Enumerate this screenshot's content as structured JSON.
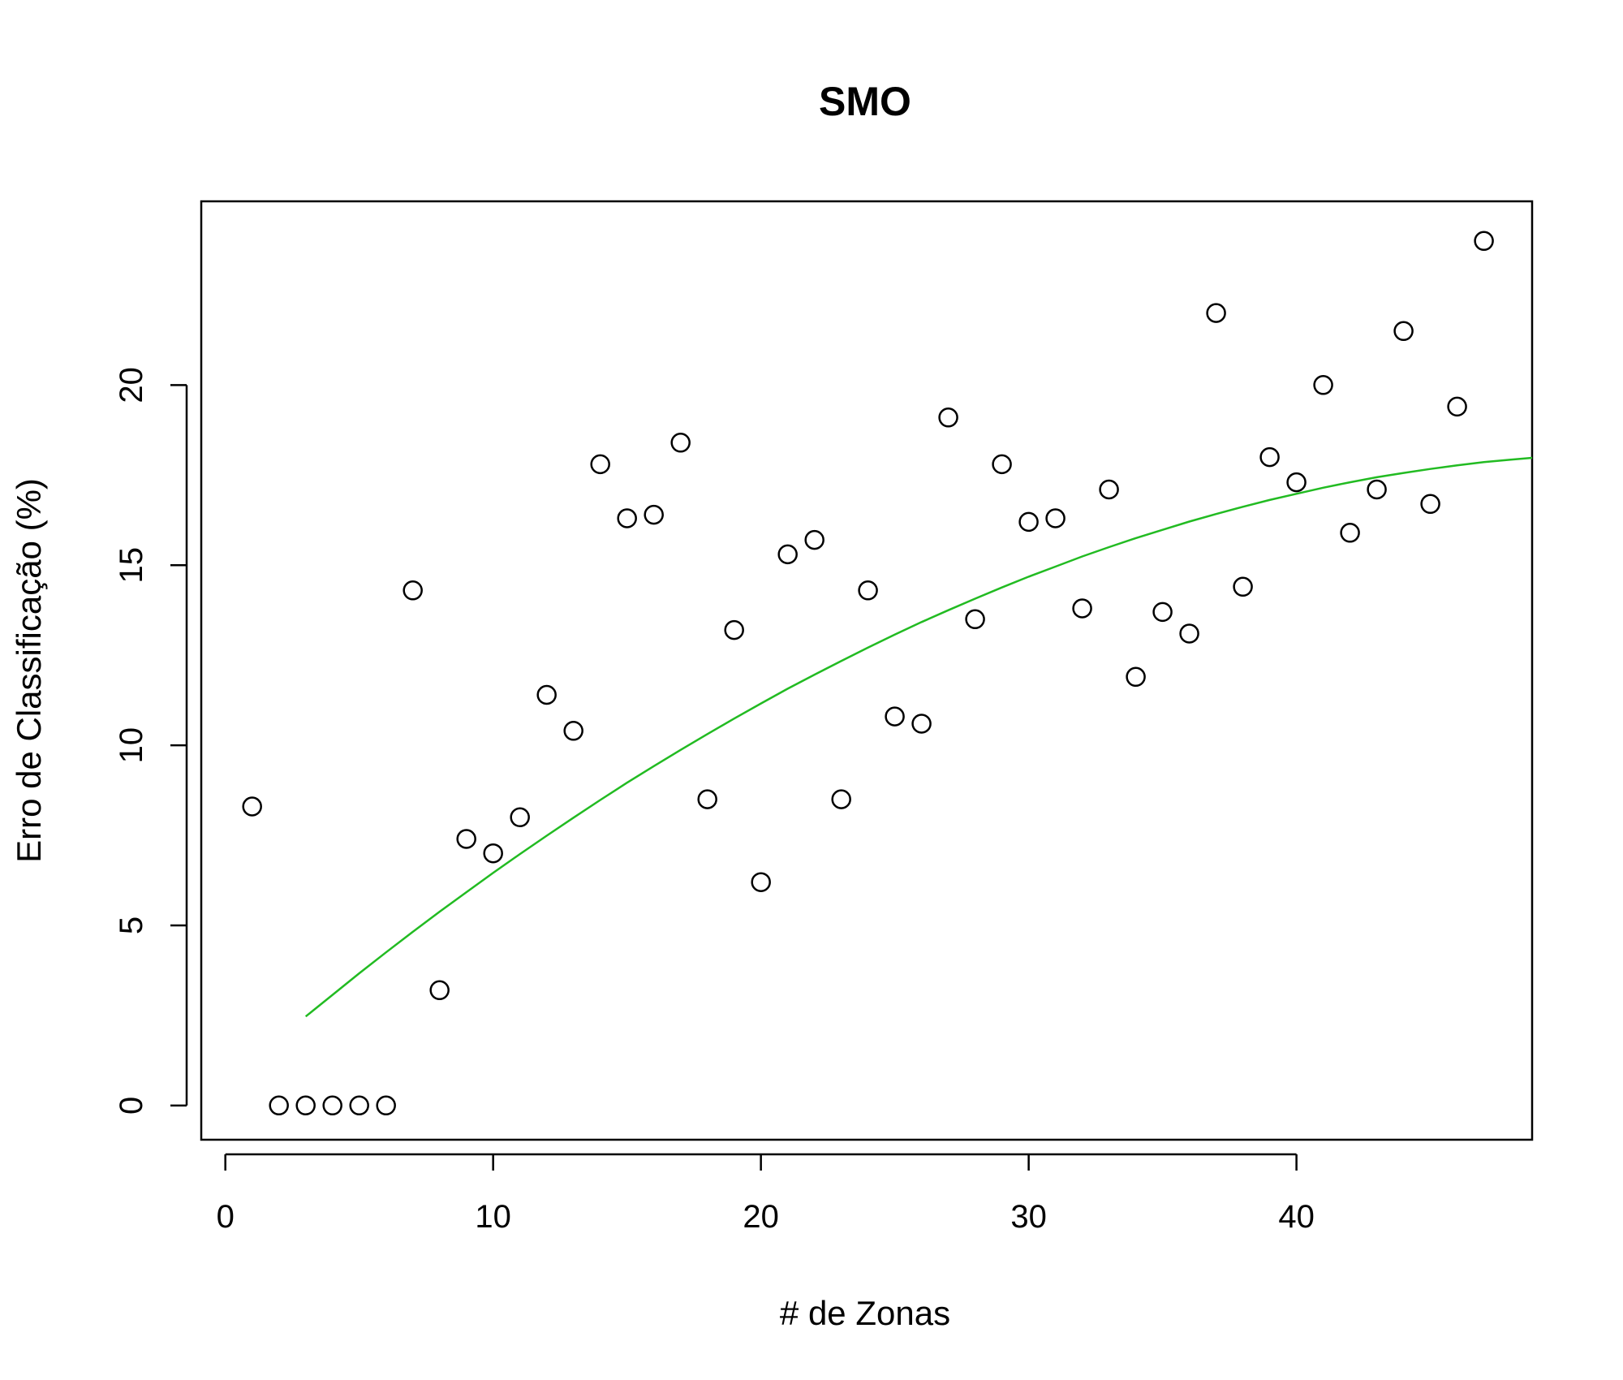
{
  "chart_data": {
    "type": "scatter",
    "title": "SMO",
    "xlabel": "# de Zonas",
    "ylabel": "Erro de Classificação (%)",
    "xlim": [
      -0.9,
      48.8
    ],
    "ylim": [
      -0.95,
      25.1
    ],
    "x_ticks": [
      0,
      10,
      20,
      30,
      40
    ],
    "y_ticks": [
      0,
      5,
      10,
      15,
      20
    ],
    "grid": false,
    "legend": "none",
    "point_color": "#000000",
    "trend_color": "#22bb22",
    "series": [
      {
        "x": [
          1,
          2,
          3,
          4,
          5,
          6,
          7,
          8,
          9,
          10,
          11,
          12,
          13,
          14,
          15,
          16,
          17,
          18,
          19,
          20,
          21,
          22,
          23,
          24,
          25,
          26,
          27,
          28,
          29,
          30,
          31,
          32,
          33,
          34,
          35,
          36,
          37,
          38,
          39,
          40,
          41,
          42,
          43,
          44,
          45,
          46,
          47
        ],
        "y": [
          8.3,
          0,
          0,
          0,
          0,
          0,
          14.3,
          3.2,
          7.4,
          7.0,
          8.0,
          11.4,
          10.4,
          17.8,
          16.3,
          16.4,
          18.4,
          8.5,
          13.2,
          6.2,
          15.3,
          15.7,
          8.5,
          14.3,
          10.8,
          10.6,
          19.1,
          13.5,
          17.8,
          16.2,
          16.3,
          13.8,
          17.1,
          11.9,
          13.7,
          13.1,
          22.0,
          14.4,
          18.0,
          17.3,
          20.0,
          15.9,
          17.1,
          21.5,
          16.7,
          19.4,
          24.0
        ]
      }
    ],
    "trend": {
      "x": [
        3,
        4,
        5,
        6,
        7,
        8,
        9,
        10,
        11,
        12,
        13,
        14,
        15,
        16,
        17,
        18,
        19,
        20,
        21,
        22,
        23,
        24,
        25,
        26,
        27,
        28,
        29,
        30,
        31,
        32,
        33,
        34,
        35,
        36,
        37,
        38,
        39,
        40,
        41,
        42,
        43,
        44,
        45,
        46,
        47,
        48,
        48.8
      ],
      "y": [
        2.47,
        3.07,
        3.67,
        4.25,
        4.82,
        5.38,
        5.92,
        6.46,
        6.98,
        7.49,
        7.99,
        8.48,
        8.96,
        9.42,
        9.87,
        10.31,
        10.74,
        11.16,
        11.57,
        11.96,
        12.34,
        12.71,
        13.07,
        13.42,
        13.75,
        14.07,
        14.38,
        14.68,
        14.96,
        15.24,
        15.5,
        15.75,
        15.98,
        16.21,
        16.42,
        16.62,
        16.81,
        16.98,
        17.15,
        17.3,
        17.44,
        17.56,
        17.67,
        17.77,
        17.86,
        17.93,
        17.98
      ]
    }
  }
}
